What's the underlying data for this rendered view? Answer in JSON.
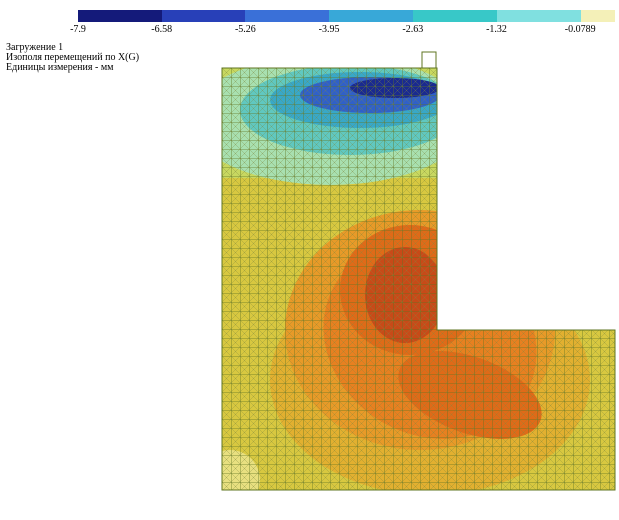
{
  "legend": {
    "labels": [
      "-7.9",
      "-6.58",
      "-5.26",
      "-3.95",
      "-2.63",
      "-1.32",
      "-0.0789"
    ]
  },
  "header": {
    "lines": [
      "Загружение  1",
      "Изополя перемещений по X(G)",
      "Единицы измерения - мм"
    ]
  }
}
